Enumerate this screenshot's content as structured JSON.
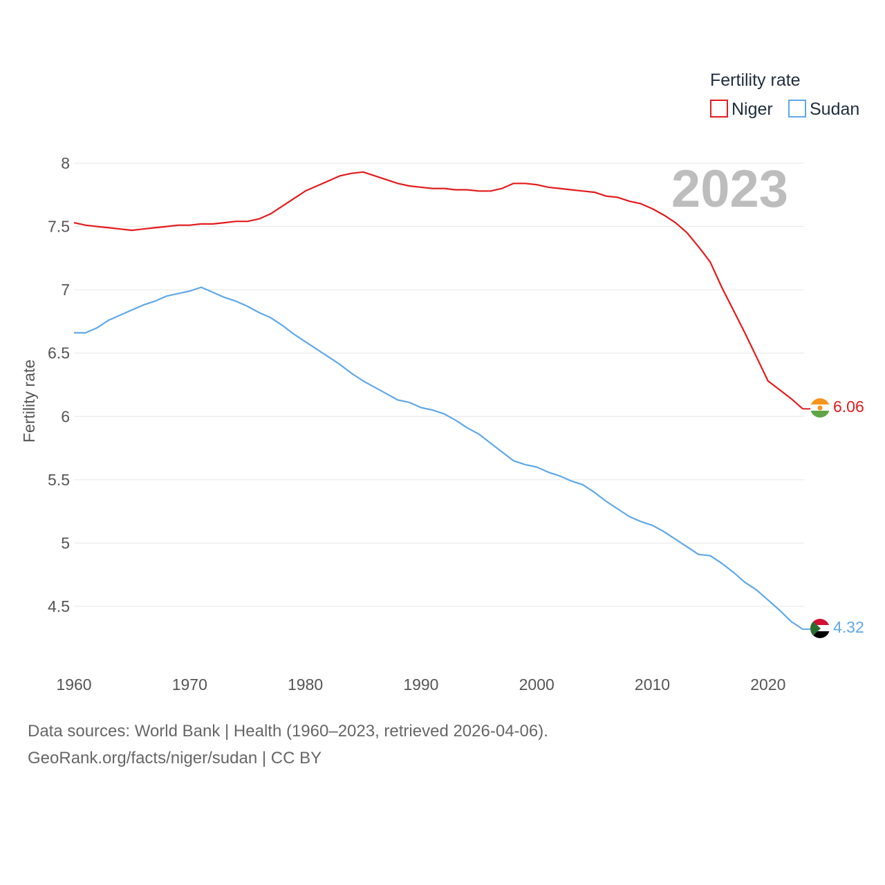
{
  "chart_data": {
    "type": "line",
    "title": "",
    "xlabel": "",
    "ylabel": "Fertility rate",
    "xlim": [
      1960,
      2023
    ],
    "ylim": [
      4.2,
      8.1
    ],
    "x_ticks": [
      1960,
      1970,
      1980,
      1990,
      2000,
      2010,
      2020
    ],
    "y_ticks": [
      4.5,
      5,
      5.5,
      6,
      6.5,
      7,
      7.5,
      8
    ],
    "grid": true,
    "legend": {
      "title": "Fertility rate",
      "position": "top-right"
    },
    "year_display": "2023",
    "x": [
      1960,
      1961,
      1962,
      1963,
      1964,
      1965,
      1966,
      1967,
      1968,
      1969,
      1970,
      1971,
      1972,
      1973,
      1974,
      1975,
      1976,
      1977,
      1978,
      1979,
      1980,
      1981,
      1982,
      1983,
      1984,
      1985,
      1986,
      1987,
      1988,
      1989,
      1990,
      1991,
      1992,
      1993,
      1994,
      1995,
      1996,
      1997,
      1998,
      1999,
      2000,
      2001,
      2002,
      2003,
      2004,
      2005,
      2006,
      2007,
      2008,
      2009,
      2010,
      2011,
      2012,
      2013,
      2014,
      2015,
      2016,
      2017,
      2018,
      2019,
      2020,
      2021,
      2022,
      2023
    ],
    "series": [
      {
        "name": "Niger",
        "color": "#e31a1c",
        "end_label": "6.06",
        "values": [
          7.53,
          7.51,
          7.5,
          7.49,
          7.48,
          7.47,
          7.48,
          7.49,
          7.5,
          7.51,
          7.51,
          7.52,
          7.52,
          7.53,
          7.54,
          7.54,
          7.56,
          7.6,
          7.66,
          7.72,
          7.78,
          7.82,
          7.86,
          7.9,
          7.92,
          7.93,
          7.9,
          7.87,
          7.84,
          7.82,
          7.81,
          7.8,
          7.8,
          7.79,
          7.79,
          7.78,
          7.78,
          7.8,
          7.84,
          7.84,
          7.83,
          7.81,
          7.8,
          7.79,
          7.78,
          7.77,
          7.74,
          7.73,
          7.7,
          7.68,
          7.64,
          7.59,
          7.53,
          7.45,
          7.34,
          7.22,
          7.02,
          6.84,
          6.66,
          6.47,
          6.28,
          6.21,
          6.14,
          6.06
        ]
      },
      {
        "name": "Sudan",
        "color": "#5ea8e8",
        "end_label": "4.32",
        "values": [
          6.66,
          6.66,
          6.7,
          6.76,
          6.8,
          6.84,
          6.88,
          6.91,
          6.95,
          6.97,
          6.99,
          7.02,
          6.98,
          6.94,
          6.91,
          6.87,
          6.82,
          6.78,
          6.72,
          6.65,
          6.59,
          6.53,
          6.47,
          6.41,
          6.34,
          6.28,
          6.23,
          6.18,
          6.13,
          6.11,
          6.07,
          6.05,
          6.02,
          5.97,
          5.91,
          5.86,
          5.79,
          5.72,
          5.65,
          5.62,
          5.6,
          5.56,
          5.53,
          5.49,
          5.46,
          5.4,
          5.33,
          5.27,
          5.21,
          5.17,
          5.14,
          5.09,
          5.03,
          4.97,
          4.91,
          4.9,
          4.84,
          4.77,
          4.69,
          4.63,
          4.55,
          4.47,
          4.38,
          4.32
        ]
      }
    ]
  },
  "footer": {
    "source_line1": "Data sources: World Bank | Health (1960–2023, retrieved 2026-04-06).",
    "source_line2": "GeoRank.org/facts/niger/sudan | CC BY"
  }
}
